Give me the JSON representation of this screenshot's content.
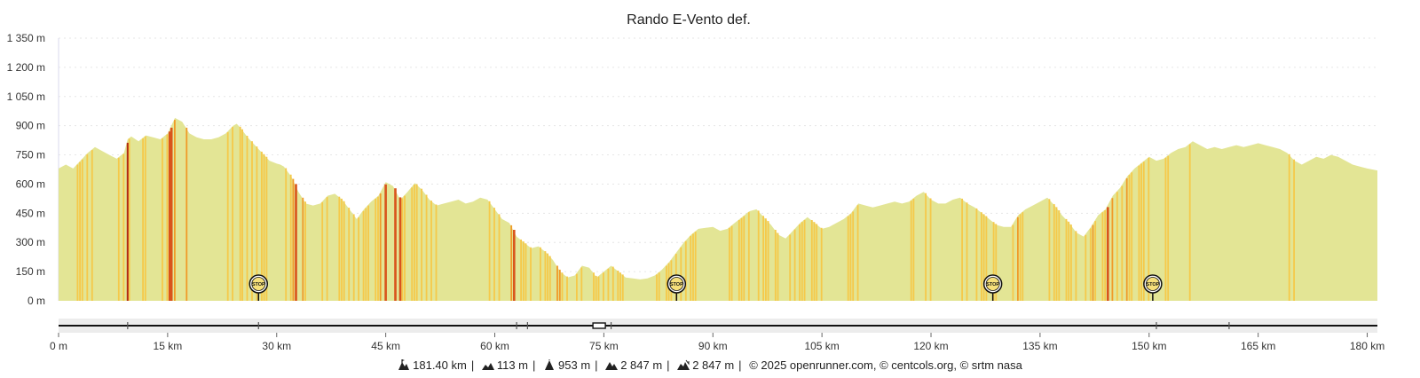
{
  "chart_data": {
    "type": "area",
    "title": "Rando E-Vento def.",
    "xlabel": "",
    "ylabel": "",
    "x_unit": "km",
    "y_unit": "m",
    "xlim": [
      0,
      181.4
    ],
    "ylim": [
      0,
      1350
    ],
    "y_ticks": [
      "0 m",
      "150 m",
      "300 m",
      "450 m",
      "600 m",
      "750 m",
      "900 m",
      "1 050 m",
      "1 200 m",
      "1 350 m"
    ],
    "y_tick_values": [
      0,
      150,
      300,
      450,
      600,
      750,
      900,
      1050,
      1200,
      1350
    ],
    "x_ticks": [
      "0 m",
      "15 km",
      "30 km",
      "45 km",
      "60 km",
      "75 km",
      "90 km",
      "105 km",
      "120 km",
      "135 km",
      "150 km",
      "165 km",
      "180 km"
    ],
    "x_tick_values": [
      0,
      15,
      30,
      45,
      60,
      75,
      90,
      105,
      120,
      135,
      150,
      165,
      180
    ],
    "grid": true,
    "fill_color": "#e3e595",
    "grade_colors": [
      "#f5c94a",
      "#f09a28",
      "#d9541c",
      "#b22a14"
    ],
    "series": [
      {
        "x": [
          0,
          1,
          2,
          3,
          4,
          5,
          6,
          7,
          8,
          9,
          9.5,
          10,
          11,
          12,
          13,
          14,
          15,
          15.5,
          16,
          17,
          18,
          19,
          20,
          21,
          22,
          23,
          24,
          24.5,
          25,
          26,
          27,
          28,
          29,
          30,
          30.5,
          31,
          32,
          33,
          34,
          35,
          36,
          37,
          38,
          39,
          40,
          41,
          42,
          43,
          44,
          45,
          46,
          47,
          48,
          49,
          50,
          51,
          52,
          53,
          54,
          55,
          56,
          57,
          58,
          59,
          60,
          61,
          62,
          63,
          64,
          65,
          66,
          67,
          68,
          69,
          70,
          71,
          72,
          73,
          74,
          75,
          76,
          77,
          78,
          79,
          80,
          81,
          82,
          83,
          84,
          85,
          86,
          87,
          88,
          89,
          90,
          91,
          92,
          93,
          94,
          95,
          96,
          97,
          98,
          99,
          100,
          101,
          102,
          103,
          104,
          105,
          106,
          107,
          108,
          109,
          110,
          111,
          112,
          113,
          114,
          115,
          116,
          117,
          118,
          119,
          120,
          121,
          122,
          123,
          124,
          125,
          126,
          127,
          128,
          129,
          130,
          131,
          132,
          133,
          134,
          135,
          136,
          137,
          138,
          139,
          140,
          141,
          142,
          143,
          144,
          145,
          146,
          147,
          148,
          149,
          150,
          151,
          152,
          153,
          154,
          155,
          156,
          157,
          158,
          159,
          160,
          161,
          162,
          163,
          164,
          165,
          166,
          167,
          168,
          169,
          170,
          171,
          172,
          173,
          174,
          175,
          176,
          177,
          178,
          179,
          180,
          181.4
        ],
        "y": [
          680,
          700,
          680,
          720,
          760,
          790,
          770,
          750,
          730,
          760,
          830,
          845,
          820,
          850,
          840,
          830,
          860,
          900,
          940,
          920,
          860,
          840,
          830,
          830,
          840,
          860,
          900,
          910,
          890,
          840,
          800,
          760,
          720,
          705,
          700,
          690,
          640,
          560,
          500,
          490,
          500,
          540,
          550,
          520,
          470,
          420,
          470,
          510,
          540,
          610,
          590,
          520,
          560,
          605,
          570,
          520,
          490,
          500,
          510,
          520,
          500,
          510,
          530,
          520,
          470,
          420,
          400,
          330,
          300,
          270,
          280,
          250,
          210,
          150,
          120,
          130,
          180,
          170,
          120,
          150,
          180,
          150,
          120,
          115,
          110,
          115,
          130,
          160,
          200,
          250,
          300,
          340,
          370,
          375,
          380,
          360,
          370,
          400,
          430,
          460,
          470,
          430,
          390,
          340,
          320,
          360,
          400,
          430,
          400,
          370,
          380,
          400,
          420,
          450,
          500,
          490,
          480,
          490,
          500,
          510,
          500,
          510,
          540,
          560,
          520,
          500,
          500,
          520,
          530,
          500,
          480,
          450,
          420,
          390,
          380,
          380,
          440,
          470,
          490,
          510,
          530,
          490,
          440,
          400,
          350,
          330,
          380,
          440,
          470,
          540,
          580,
          640,
          680,
          710,
          740,
          720,
          730,
          760,
          780,
          790,
          820,
          800,
          780,
          790,
          780,
          790,
          800,
          790,
          800,
          810,
          800,
          790,
          780,
          760,
          720,
          700,
          720,
          740,
          730,
          750,
          740,
          720,
          700,
          690,
          680,
          670
        ]
      }
    ],
    "stops": [
      {
        "km": 27.5,
        "label": "STOP"
      },
      {
        "km": 85.0,
        "label": "STOP"
      },
      {
        "km": 128.5,
        "label": "STOP"
      },
      {
        "km": 150.5,
        "label": "STOP"
      }
    ]
  },
  "footer": {
    "distance": "181.40 km",
    "min_altitude": "113 m",
    "max_altitude": "953 m",
    "ascent": "2 847 m",
    "descent": "2 847 m",
    "credits": "© 2025 openrunner.com, © centcols.org, © srtm nasa"
  }
}
